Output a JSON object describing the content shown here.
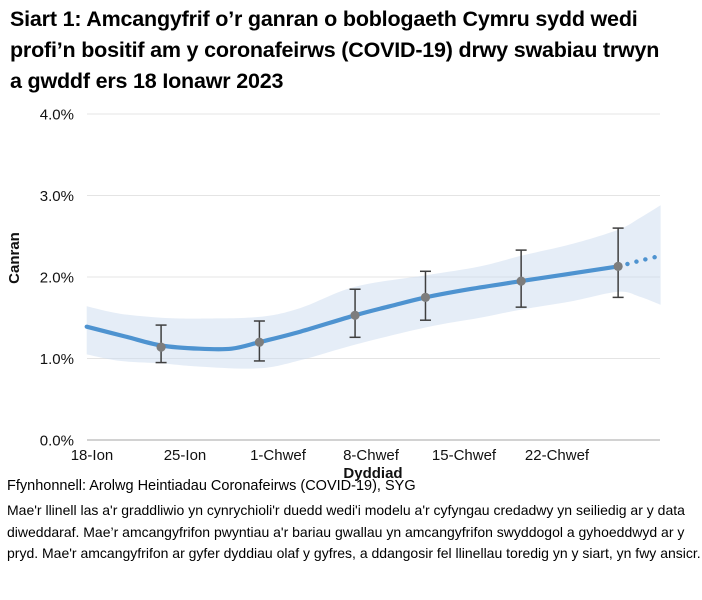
{
  "title": "Siart 1: Amcangyfrif o’r ganran o boblogaeth Cymru sydd wedi profi’n bositif am y coronafeirws (COVID-19) drwy swabiau trwyn a gwddf ers 18 Ionawr 2023",
  "source": "Ffynhonnell: Arolwg Heintiadau Coronafeirws (COVID-19), SYG",
  "footnote": "Mae'r llinell las a'r graddliwio yn cynrychioli'r duedd wedi'i modelu a'r cyfyngau credadwy yn seiliedig ar y data diweddaraf. Mae’r amcangyfrifon pwyntiau a'r bariau gwallau yn amcangyfrifon swyddogol a gyhoeddwyd ar y pryd. Mae'r amcangyfrifon ar gyfer dyddiau olaf y gyfres, a ddangosir fel llinellau toredig yn y siart, yn fwy ansicr.",
  "colors": {
    "trend_line": "#4e93d0",
    "band_fill": "#ccdcf0",
    "point_fill": "#7d7d7d",
    "error_bar": "#3f3f3f",
    "gridline": "#e4e4e4",
    "axis_line": "#b8b8b8",
    "text": "#111111"
  },
  "chart_data": {
    "type": "line",
    "title": "",
    "xlabel": "Dyddiad",
    "ylabel": "Canran",
    "units": "percent",
    "ylim": [
      0,
      4
    ],
    "grid": true,
    "legend": false,
    "y_ticks": [
      {
        "value": 0,
        "label": "0.0%"
      },
      {
        "value": 1,
        "label": "1.0%"
      },
      {
        "value": 2,
        "label": "2.0%"
      },
      {
        "value": 3,
        "label": "3.0%"
      },
      {
        "value": 4,
        "label": "4.0%"
      }
    ],
    "x_ticks": [
      {
        "day": 0,
        "label": "18-Ion"
      },
      {
        "day": 7,
        "label": "25-Ion"
      },
      {
        "day": 14,
        "label": "1-Chwef"
      },
      {
        "day": 21,
        "label": "8-Chwef"
      },
      {
        "day": 28,
        "label": "15-Chwef"
      },
      {
        "day": 35,
        "label": "22-Chwef"
      }
    ],
    "x_range_days": [
      -0.4,
      42.8
    ],
    "trend_line": {
      "days": [
        -0.4,
        2.5,
        5.2,
        8.1,
        10.5,
        12.6,
        15.7,
        19.8,
        22.4,
        25.1,
        28.4,
        32.3,
        36.0,
        39.6
      ],
      "values": [
        1.39,
        1.27,
        1.16,
        1.12,
        1.12,
        1.2,
        1.33,
        1.53,
        1.64,
        1.75,
        1.85,
        1.95,
        2.04,
        2.13
      ]
    },
    "trend_dotted": {
      "days": [
        40.3,
        41.5,
        42.8
      ],
      "values": [
        2.16,
        2.21,
        2.26
      ]
    },
    "credible_band": {
      "days": [
        -0.4,
        2.1,
        5.2,
        8.1,
        12.6,
        15.7,
        19.8,
        25.1,
        29.2,
        32.3,
        36.0,
        39.6,
        41.2,
        42.8
      ],
      "upper": [
        1.64,
        1.55,
        1.5,
        1.49,
        1.51,
        1.62,
        1.88,
        2.02,
        2.13,
        2.26,
        2.4,
        2.58,
        2.72,
        2.88
      ],
      "lower": [
        1.05,
        0.97,
        0.94,
        0.9,
        0.88,
        0.98,
        1.17,
        1.38,
        1.5,
        1.6,
        1.7,
        1.82,
        1.76,
        1.66
      ]
    },
    "official_estimates": [
      {
        "day": 5.2,
        "estimate": 1.14,
        "lower": 0.95,
        "upper": 1.41
      },
      {
        "day": 12.6,
        "estimate": 1.2,
        "lower": 0.97,
        "upper": 1.46
      },
      {
        "day": 19.8,
        "estimate": 1.53,
        "lower": 1.26,
        "upper": 1.85
      },
      {
        "day": 25.1,
        "estimate": 1.75,
        "lower": 1.47,
        "upper": 2.07
      },
      {
        "day": 32.3,
        "estimate": 1.95,
        "lower": 1.63,
        "upper": 2.33
      },
      {
        "day": 39.6,
        "estimate": 2.13,
        "lower": 1.75,
        "upper": 2.6
      }
    ]
  }
}
